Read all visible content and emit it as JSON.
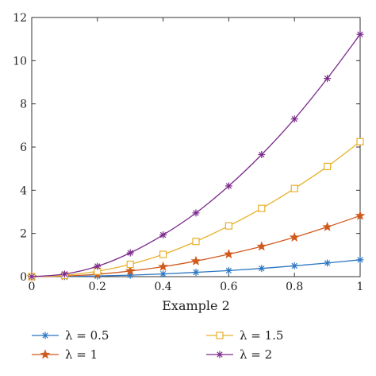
{
  "chart_data": {
    "type": "line",
    "title": "",
    "xlabel": "Example 2",
    "ylabel": "",
    "xlim": [
      0,
      1
    ],
    "ylim": [
      0,
      12
    ],
    "grid": false,
    "legend_position": "bottom",
    "x_ticks": [
      "0",
      "0.2",
      "0.4",
      "0.6",
      "0.8",
      "1"
    ],
    "y_ticks": [
      "0",
      "2",
      "4",
      "6",
      "8",
      "10",
      "12"
    ],
    "x": [
      0,
      0.1,
      0.2,
      0.3,
      0.4,
      0.5,
      0.6,
      0.7,
      0.8,
      0.9,
      1.0
    ],
    "series": [
      {
        "name": "λ = 0.5",
        "color": "#2b76c2",
        "marker": "asterisk",
        "values": [
          0,
          0.008,
          0.03,
          0.07,
          0.125,
          0.2,
          0.28,
          0.38,
          0.5,
          0.63,
          0.78
        ]
      },
      {
        "name": "λ = 1",
        "color": "#d05a1d",
        "marker": "star",
        "values": [
          0,
          0.03,
          0.11,
          0.26,
          0.46,
          0.72,
          1.04,
          1.4,
          1.82,
          2.3,
          2.82
        ]
      },
      {
        "name": "λ = 1.5",
        "color": "#e8b02a",
        "marker": "square",
        "values": [
          0,
          0.06,
          0.25,
          0.57,
          1.03,
          1.63,
          2.35,
          3.16,
          4.08,
          5.1,
          6.25
        ]
      },
      {
        "name": "λ = 2",
        "color": "#7b2a8c",
        "marker": "asterisk",
        "values": [
          0,
          0.12,
          0.48,
          1.1,
          1.93,
          2.95,
          4.2,
          5.65,
          7.3,
          9.18,
          11.22
        ]
      }
    ]
  }
}
